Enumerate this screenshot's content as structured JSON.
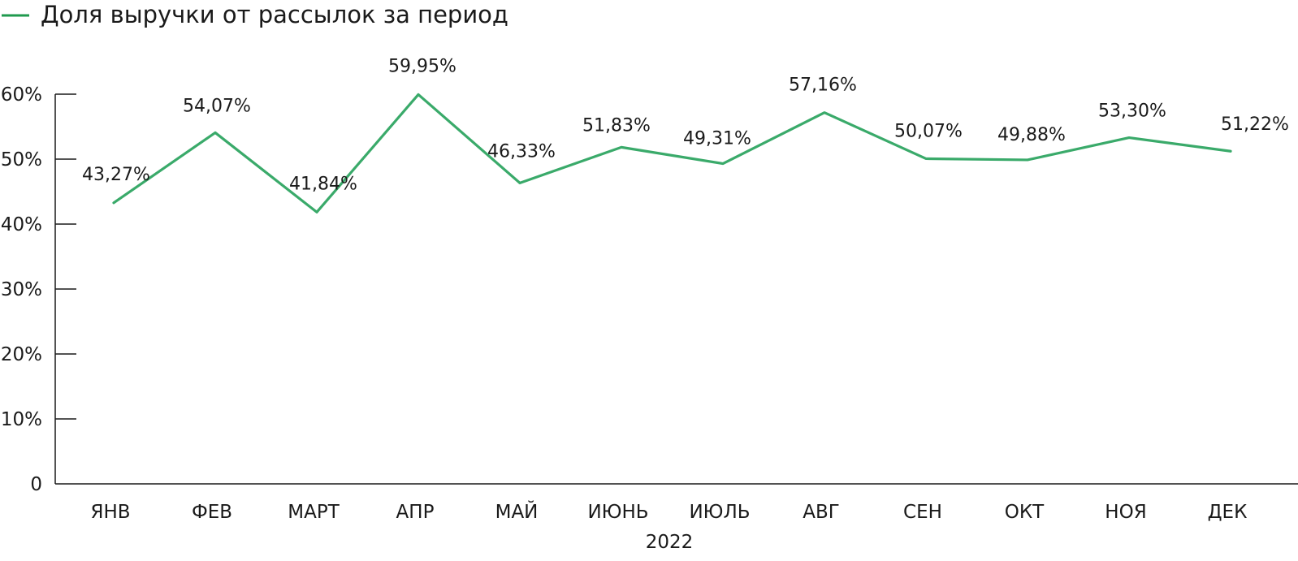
{
  "chart_data": {
    "type": "line",
    "title": "",
    "xlabel": "2022",
    "ylabel": "",
    "categories": [
      "ЯНВ",
      "ФЕВ",
      "МАРТ",
      "АПР",
      "МАЙ",
      "ИЮНЬ",
      "ИЮЛЬ",
      "АВГ",
      "СЕН",
      "ОКТ",
      "НОЯ",
      "ДЕК"
    ],
    "series": [
      {
        "name": "Доля выручки от рассылок за период",
        "values": [
          43.27,
          54.07,
          41.84,
          59.95,
          46.33,
          51.83,
          49.31,
          57.16,
          50.07,
          49.88,
          53.3,
          51.22
        ],
        "labels": [
          "43,27%",
          "54,07%",
          "41,84%",
          "59,95%",
          "46,33%",
          "51,83%",
          "49,31%",
          "57,16%",
          "50,07%",
          "49,88%",
          "53,30%",
          "51,22%"
        ],
        "color": "#3aaa6a"
      }
    ],
    "ylim": [
      0,
      60
    ],
    "yticks": [
      0,
      10,
      20,
      30,
      40,
      50,
      60
    ],
    "ytick_labels": [
      "0",
      "10%",
      "20%",
      "30%",
      "40%",
      "50%",
      "60%"
    ],
    "grid": false,
    "legend": "top-left",
    "legend_color": "#1f9a4e"
  }
}
